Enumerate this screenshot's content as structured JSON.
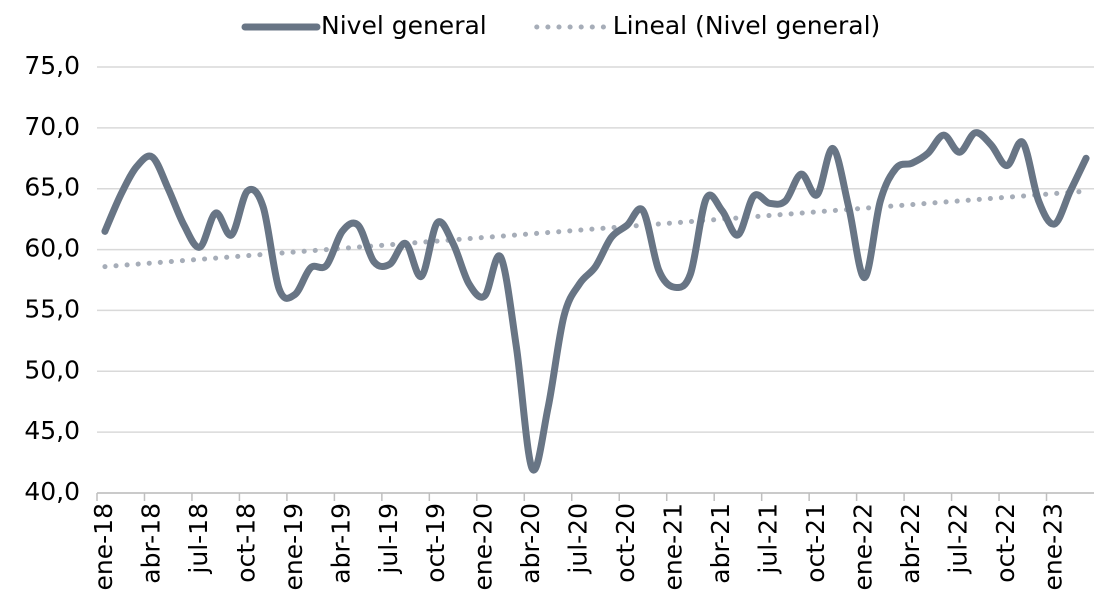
{
  "chart_data": {
    "type": "line",
    "categories": [
      "ene-18",
      null,
      null,
      "abr-18",
      null,
      null,
      "jul-18",
      null,
      null,
      "oct-18",
      null,
      null,
      "ene-19",
      null,
      null,
      "abr-19",
      null,
      null,
      "jul-19",
      null,
      null,
      "oct-19",
      null,
      null,
      "ene-20",
      null,
      null,
      "abr-20",
      null,
      null,
      "jul-20",
      null,
      null,
      "oct-20",
      null,
      null,
      "ene-21",
      null,
      null,
      "abr-21",
      null,
      null,
      "jul-21",
      null,
      null,
      "oct-21",
      null,
      null,
      "ene-22",
      null,
      null,
      "abr-22",
      null,
      null,
      "jul-22",
      null,
      null,
      "oct-22",
      null,
      null,
      "ene-23",
      null,
      null
    ],
    "series": [
      {
        "name": "Nivel general",
        "color": "#687585",
        "style": "solid",
        "values": [
          61.5,
          64.5,
          66.8,
          67.6,
          65,
          62,
          60.2,
          63,
          61.2,
          64.8,
          63.5,
          56.8,
          56.3,
          58.5,
          58.7,
          61.5,
          62,
          59,
          58.8,
          60.5,
          57.8,
          62.2,
          60.5,
          57.2,
          56.2,
          59.4,
          52,
          42,
          47,
          54.5,
          57.2,
          58.6,
          61,
          62,
          63.2,
          58.3,
          56.9,
          58,
          64.2,
          63.2,
          61.2,
          64.4,
          63.8,
          64,
          66.2,
          64.5,
          68.3,
          63.5,
          57.7,
          64,
          66.7,
          67.1,
          67.9,
          69.4,
          68,
          69.6,
          68.6,
          66.9,
          68.8,
          64,
          62.1,
          64.8,
          67.5
        ]
      },
      {
        "name": "Lineal (Nivel general)",
        "color": "#a6adb8",
        "style": "dotted",
        "values": [
          58.6,
          58.7,
          58.8,
          58.9,
          59,
          59.1,
          59.2,
          59.3,
          59.4,
          59.5,
          59.6,
          59.7,
          59.8,
          59.9,
          60,
          60.1,
          60.2,
          60.3,
          60.4,
          60.5,
          60.6,
          60.7,
          60.8,
          60.9,
          61,
          61.1,
          61.2,
          61.3,
          61.4,
          61.5,
          61.6,
          61.7,
          61.8,
          61.9,
          62,
          62.1,
          62.2,
          62.3,
          62.4,
          62.5,
          62.6,
          62.7,
          62.8,
          62.9,
          63,
          63.1,
          63.2,
          63.3,
          63.4,
          63.5,
          63.6,
          63.7,
          63.8,
          63.9,
          64,
          64.1,
          64.2,
          64.3,
          64.4,
          64.5,
          64.6,
          64.7,
          64.8
        ]
      }
    ],
    "ylim": [
      40,
      75
    ],
    "yticks": [
      {
        "value": 40,
        "label": "40,0"
      },
      {
        "value": 45,
        "label": "45,0"
      },
      {
        "value": 50,
        "label": "50,0"
      },
      {
        "value": 55,
        "label": "55,0"
      },
      {
        "value": 60,
        "label": "60,0"
      },
      {
        "value": 65,
        "label": "65,0"
      },
      {
        "value": 70,
        "label": "70,0"
      },
      {
        "value": 75,
        "label": "75,0"
      }
    ],
    "grid": true,
    "legend": "top"
  }
}
